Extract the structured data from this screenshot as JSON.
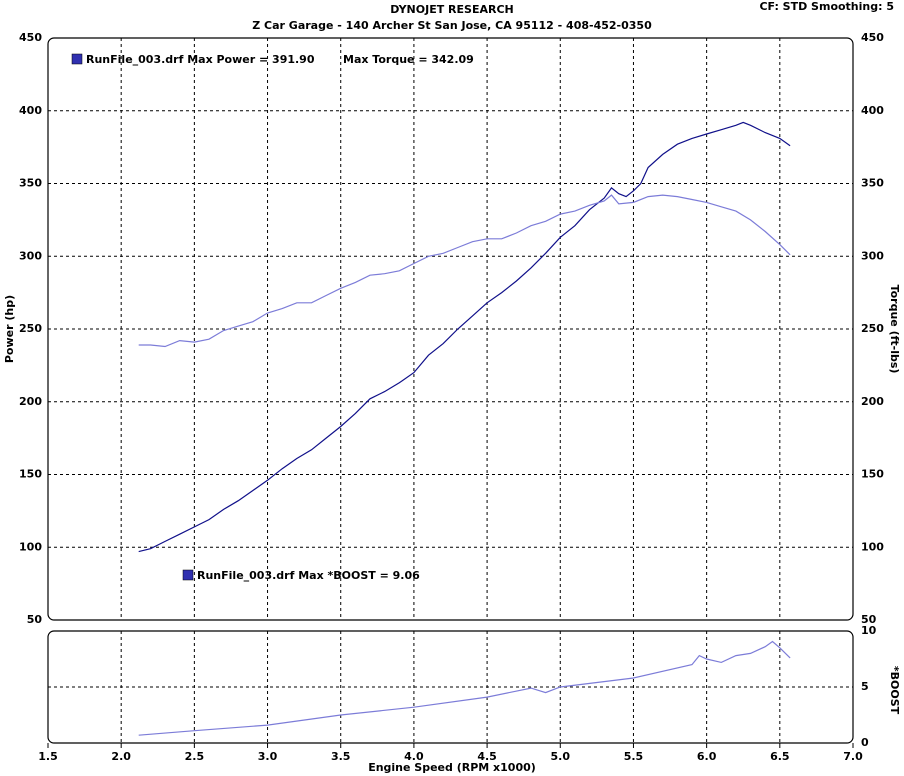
{
  "chart_data": [
    {
      "type": "line",
      "title": "DYNOJET RESEARCH",
      "subtitle": "Z Car Garage - 140 Archer St San Jose, CA 95112 - 408-452-0350",
      "settings_label": "CF: STD  Smoothing: 5",
      "ylabel": "Power (hp)",
      "y2label": "Torque (ft-lbs)",
      "ylim": [
        50,
        450
      ],
      "yticks": [
        50,
        100,
        150,
        200,
        250,
        300,
        350,
        400,
        450
      ],
      "y2lim": [
        50,
        450
      ],
      "y2ticks": [
        50,
        100,
        150,
        200,
        250,
        300,
        350,
        400,
        450
      ],
      "grid": true,
      "annotations": [
        "RunFile_003.drf Max Power = 391.90",
        "Max Torque = 342.09"
      ],
      "series": [
        {
          "color": "#10108a",
          "x": [
            2.12,
            2.2,
            2.3,
            2.4,
            2.5,
            2.6,
            2.7,
            2.8,
            2.9,
            3.0,
            3.1,
            3.2,
            3.3,
            3.4,
            3.5,
            3.6,
            3.7,
            3.8,
            3.9,
            4.0,
            4.1,
            4.2,
            4.3,
            4.4,
            4.5,
            4.6,
            4.7,
            4.8,
            4.9,
            5.0,
            5.1,
            5.2,
            5.3,
            5.35,
            5.4,
            5.45,
            5.5,
            5.55,
            5.6,
            5.7,
            5.8,
            5.9,
            6.0,
            6.1,
            6.2,
            6.25,
            6.3,
            6.4,
            6.5,
            6.57
          ],
          "values": [
            97,
            99,
            104,
            109,
            114,
            119,
            126,
            132,
            139,
            146,
            154,
            161,
            167,
            175,
            183,
            192,
            202,
            207,
            213,
            220,
            232,
            240,
            250,
            259,
            268,
            275,
            283,
            292,
            302,
            313,
            321,
            332,
            340,
            347,
            343,
            341,
            345,
            350,
            361,
            370,
            377,
            381,
            384,
            387,
            390,
            392,
            390,
            385,
            381,
            376
          ]
        },
        {
          "color": "#7c7cd8",
          "axis": "y2",
          "x": [
            2.12,
            2.2,
            2.3,
            2.4,
            2.5,
            2.6,
            2.7,
            2.8,
            2.9,
            3.0,
            3.1,
            3.2,
            3.3,
            3.4,
            3.5,
            3.6,
            3.7,
            3.8,
            3.9,
            4.0,
            4.1,
            4.2,
            4.3,
            4.4,
            4.5,
            4.6,
            4.7,
            4.8,
            4.9,
            5.0,
            5.1,
            5.2,
            5.3,
            5.35,
            5.4,
            5.5,
            5.6,
            5.7,
            5.8,
            5.9,
            6.0,
            6.1,
            6.2,
            6.3,
            6.4,
            6.5,
            6.57
          ],
          "values": [
            239,
            239,
            238,
            242,
            241,
            243,
            249,
            252,
            255,
            261,
            264,
            268,
            268,
            273,
            278,
            282,
            287,
            288,
            290,
            295,
            300,
            302,
            306,
            310,
            312,
            312,
            316,
            321,
            324,
            329,
            331,
            335,
            338,
            342,
            336,
            337,
            341,
            342,
            341,
            339,
            337,
            334,
            331,
            325,
            317,
            308,
            301
          ]
        }
      ]
    },
    {
      "type": "line",
      "xlabel": "Engine Speed (RPM x1000)",
      "y2label": "*BOOST",
      "xlim": [
        1.5,
        7.0
      ],
      "xticks": [
        1.5,
        {
          "value": 2,
          "label": "2.0"
        },
        2.5,
        {
          "value": 3,
          "label": "3.0"
        },
        3.5,
        {
          "value": 4,
          "label": "4.0"
        },
        4.5,
        {
          "value": 5,
          "label": "5.0"
        },
        5.5,
        {
          "value": 6,
          "label": "6.0"
        },
        6.5,
        {
          "value": 7,
          "label": "7.0"
        }
      ],
      "y2lim": [
        0,
        10
      ],
      "y2ticks": [
        0,
        5,
        10
      ],
      "grid": true,
      "annotations": [
        "RunFile_003.drf Max *BOOST = 9.06"
      ],
      "series": [
        {
          "color": "#7c7cd8",
          "axis": "y2",
          "x": [
            2.12,
            2.5,
            3.0,
            3.5,
            4.0,
            4.5,
            4.8,
            4.9,
            5.0,
            5.5,
            5.9,
            5.95,
            6.0,
            6.1,
            6.2,
            6.3,
            6.4,
            6.45,
            6.5,
            6.57
          ],
          "values": [
            0.7,
            1.1,
            1.6,
            2.5,
            3.2,
            4.1,
            4.9,
            4.5,
            5.0,
            5.8,
            7.0,
            7.8,
            7.5,
            7.2,
            7.8,
            8.0,
            8.6,
            9.06,
            8.5,
            7.6
          ]
        }
      ]
    }
  ]
}
